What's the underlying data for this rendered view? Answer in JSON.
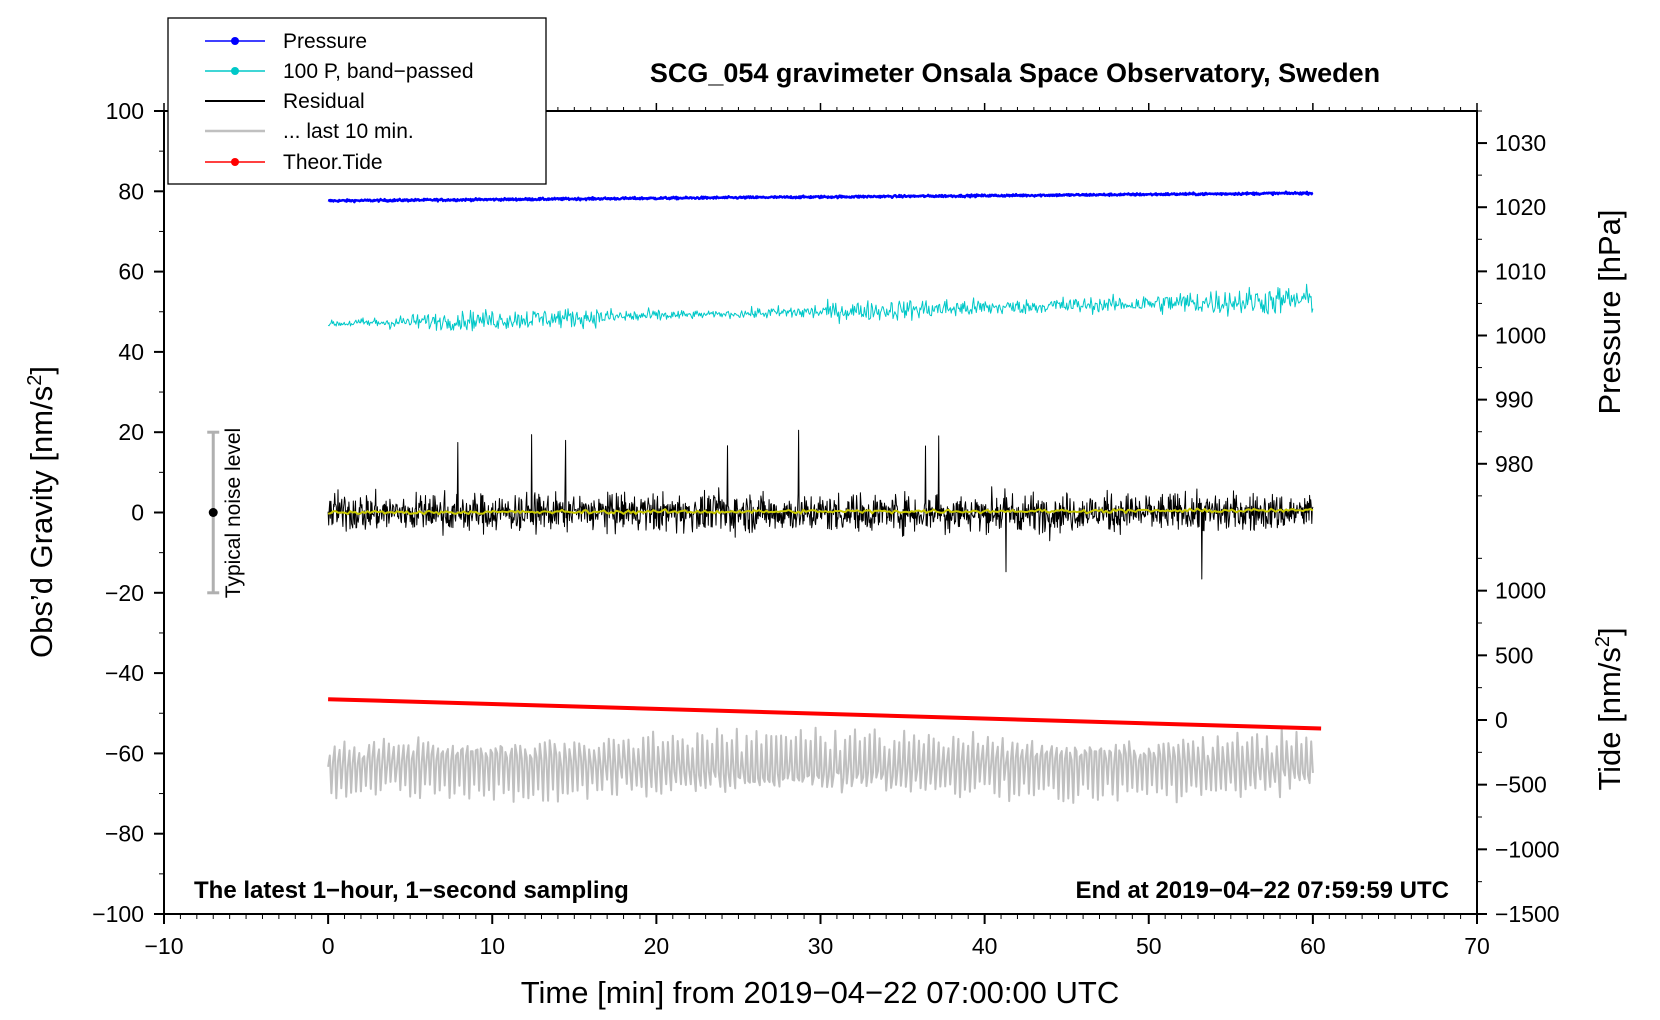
{
  "chart_data": {
    "type": "line",
    "title": "SCG_054 gravimeter Onsala Space Observatory, Sweden",
    "xlabel": "Time [min] from 2019−04−22 07:00:00 UTC",
    "ylabel_main": "Obs’d Gravity [nm/s²]",
    "ylabel_main_base": "Obs’d Gravity [nm/s",
    "ylabel_main_sup": "2",
    "ylabel_main_close": "]",
    "ylabel_pressure": "Pressure [hPa]",
    "ylabel_tide_base": "Tide [nm/s",
    "ylabel_tide_sup": "2",
    "ylabel_tide_close": "]",
    "xlim": [
      -10,
      70
    ],
    "ylim": [
      -100,
      100
    ],
    "pressure_axis": {
      "ylim": [
        965,
        1035
      ],
      "ticks": [
        980,
        990,
        1000,
        1010,
        1020,
        1030
      ]
    },
    "tide_axis": {
      "ylim": [
        -1500,
        1500
      ],
      "ticks": [
        -1500,
        -1000,
        -500,
        0,
        500,
        1000
      ]
    },
    "x_ticks": [
      -10,
      0,
      10,
      20,
      30,
      40,
      50,
      60,
      70
    ],
    "x_tick_labels": [
      "−10",
      "0",
      "10",
      "20",
      "30",
      "40",
      "50",
      "60",
      "70"
    ],
    "y_ticks": [
      -100,
      -80,
      -60,
      -40,
      -20,
      0,
      20,
      40,
      60,
      80,
      100
    ],
    "y_tick_labels": [
      "−100",
      "−80",
      "−60",
      "−40",
      "−20",
      "0",
      "20",
      "40",
      "60",
      "80",
      "100"
    ],
    "pressure_tick_labels": [
      "980",
      "990",
      "1000",
      "1010",
      "1020",
      "1030"
    ],
    "tide_tick_labels": [
      "−1500",
      "−1000",
      "−500",
      "0",
      "500",
      "1000"
    ],
    "series": [
      {
        "name": "Pressure",
        "color": "#0000ff",
        "kind": "line-dot",
        "x_range": [
          0,
          60
        ],
        "trend": [
          1021.0,
          1022.2
        ],
        "noise": 0.3
      },
      {
        "name": "100 P, band−passed",
        "color": "#00c8c8",
        "kind": "line-dot",
        "x_range": [
          0,
          60
        ],
        "trend": [
          47,
          53
        ],
        "noise": 3.5
      },
      {
        "name": "Residual",
        "color": "#000000",
        "kind": "line",
        "x_range": [
          0,
          60
        ],
        "trend": [
          0,
          0
        ],
        "noise": 8,
        "extremes": [
          -17,
          21
        ]
      },
      {
        "name": "... last 10 min.",
        "color": "#c0c0c0",
        "kind": "line",
        "x_range": [
          0,
          60
        ],
        "trend": [
          -63,
          -63
        ],
        "noise": 9,
        "extremes": [
          -76,
          -48
        ]
      },
      {
        "name": "Theor.Tide",
        "color": "#ff0000",
        "kind": "line-dot",
        "x_range": [
          0,
          60.5
        ],
        "values_main_axis": [
          -46.5,
          -53.8
        ]
      },
      {
        "name": "smoothed residual",
        "color": "#c8c800",
        "kind": "line",
        "x_range": [
          0,
          60
        ],
        "trend": [
          0,
          0.5
        ],
        "noise": 0.8,
        "in_legend": false
      }
    ],
    "noise_bar": {
      "label": "Typical noise level",
      "x": -7,
      "center": 0,
      "range": [
        -20,
        20
      ]
    },
    "annotations": {
      "bottom_left": "The latest 1−hour, 1−second sampling",
      "bottom_right": "End at 2019−04−22 07:59:59 UTC"
    },
    "legend_position": "top-left"
  }
}
